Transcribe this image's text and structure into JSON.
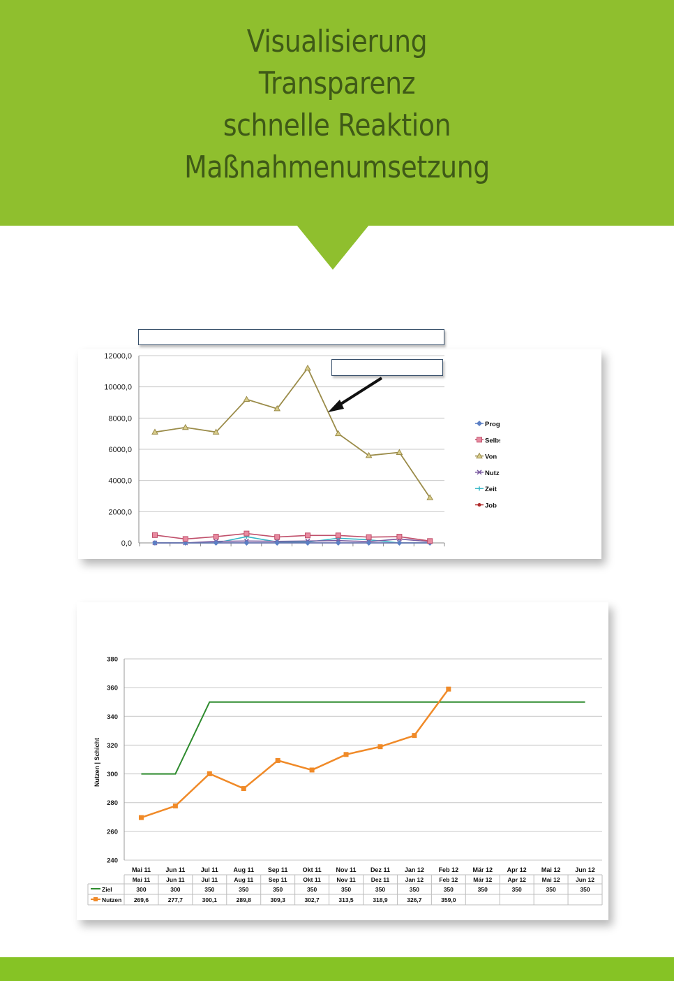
{
  "header": {
    "lines": [
      "Visualisierung",
      "Transparenz",
      "schnelle Reaktion",
      "Maßnahmenumsetzung"
    ]
  },
  "colors": {
    "header_green": "#8fbf2e",
    "footer_green": "#86c325",
    "header_text": "#3f5a17",
    "ziel_line": "#2e8b2e",
    "nutzen_line": "#f08a28"
  },
  "chart_data": [
    {
      "type": "line",
      "title": "",
      "xlabel": "",
      "ylabel": "",
      "ylim": [
        0,
        12000
      ],
      "yticks": [
        "12000,0",
        "10000,0",
        "8000,0",
        "6000,0",
        "4000,0",
        "2000,0",
        "0,0"
      ],
      "grid": true,
      "legend_position": "right",
      "x": [
        1,
        2,
        3,
        4,
        5,
        6,
        7,
        8,
        9,
        10
      ],
      "series": [
        {
          "name": "Prog",
          "color": "#5b7fc4",
          "marker": "diamond",
          "values": [
            0,
            0,
            0,
            0,
            0,
            0,
            0,
            0,
            0,
            0
          ]
        },
        {
          "name": "Selbs",
          "color": "#c0506b",
          "marker": "square",
          "values": [
            500,
            250,
            400,
            600,
            380,
            480,
            480,
            370,
            400,
            120
          ]
        },
        {
          "name": "Von",
          "color": "#9b8c4a",
          "marker": "triangle",
          "values": [
            7100,
            7400,
            7100,
            9200,
            8600,
            11200,
            7000,
            5600,
            5800,
            2900
          ]
        },
        {
          "name": "Nutz",
          "color": "#7a5aa0",
          "marker": "x",
          "values": [
            0,
            0,
            100,
            120,
            100,
            120,
            150,
            80,
            250,
            80
          ]
        },
        {
          "name": "Zeit",
          "color": "#35b6c6",
          "marker": "star",
          "values": [
            0,
            0,
            0,
            400,
            60,
            50,
            300,
            200,
            0,
            0
          ]
        },
        {
          "name": "Job",
          "color": "#b02a2a",
          "marker": "dot",
          "values": [
            0,
            0,
            0,
            0,
            0,
            0,
            0,
            0,
            0,
            0
          ]
        }
      ]
    },
    {
      "type": "line",
      "title": "",
      "xlabel": "",
      "ylabel": "Nutzen | Schicht",
      "ylim": [
        240,
        380
      ],
      "yticks": [
        "380",
        "360",
        "340",
        "320",
        "300",
        "280",
        "260",
        "240"
      ],
      "grid": true,
      "legend_position": "table-left",
      "categories": [
        "Mai 11",
        "Jun 11",
        "Jul 11",
        "Aug 11",
        "Sep 11",
        "Okt 11",
        "Nov 11",
        "Dez 11",
        "Jan 12",
        "Feb 12",
        "Mär 12",
        "Apr 12",
        "Mai 12",
        "Jun 12"
      ],
      "series": [
        {
          "name": "Ziel",
          "color": "#2e8b2e",
          "values": [
            300,
            300,
            350,
            350,
            350,
            350,
            350,
            350,
            350,
            350,
            350,
            350,
            350,
            350
          ]
        },
        {
          "name": "Nutzen",
          "color": "#f08a28",
          "values": [
            269.6,
            277.7,
            300.1,
            289.8,
            309.3,
            302.7,
            313.5,
            318.9,
            326.7,
            359.0,
            null,
            null,
            null,
            null
          ]
        }
      ],
      "table": {
        "header": [
          "Mai 11",
          "Jun 11",
          "Jul 11",
          "Aug 11",
          "Sep 11",
          "Okt 11",
          "Nov 11",
          "Dez 11",
          "Jan 12",
          "Feb 12",
          "Mär 12",
          "Apr 12",
          "Mai 12",
          "Jun 12"
        ],
        "rows": [
          {
            "label": "Ziel",
            "cells": [
              "300",
              "300",
              "350",
              "350",
              "350",
              "350",
              "350",
              "350",
              "350",
              "350",
              "350",
              "350",
              "350",
              "350"
            ]
          },
          {
            "label": "Nutzen",
            "cells": [
              "269,6",
              "277,7",
              "300,1",
              "289,8",
              "309,3",
              "302,7",
              "313,5",
              "318,9",
              "326,7",
              "359,0",
              "",
              "",
              "",
              ""
            ]
          }
        ]
      }
    }
  ]
}
